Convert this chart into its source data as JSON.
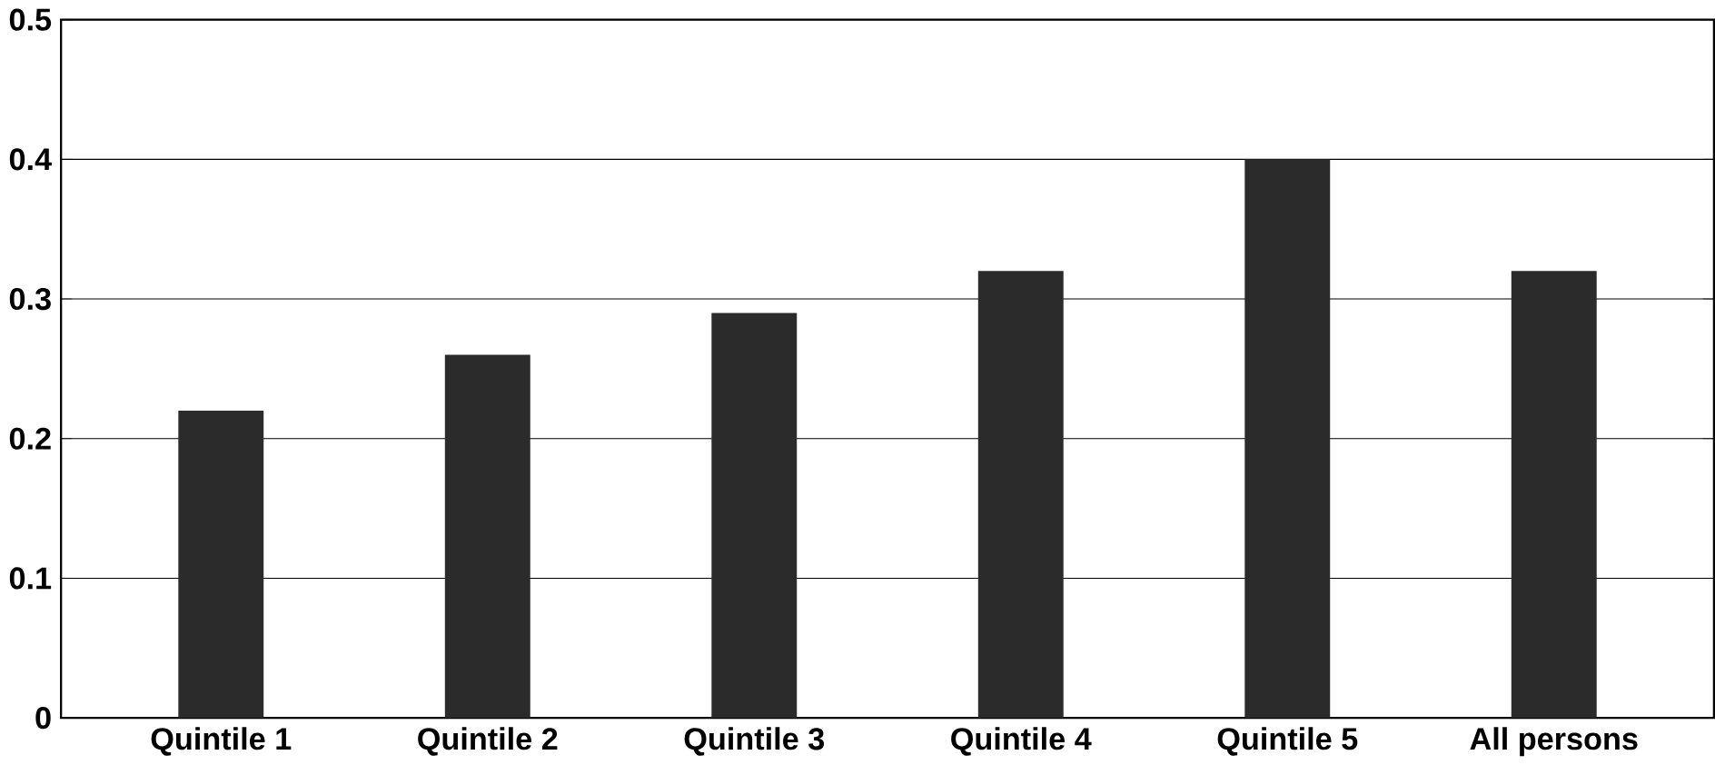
{
  "chart_data": {
    "type": "bar",
    "categories": [
      "Quintile 1",
      "Quintile 2",
      "Quintile 3",
      "Quintile 4",
      "Quintile 5",
      "All persons"
    ],
    "values": [
      0.22,
      0.26,
      0.29,
      0.32,
      0.4,
      0.32
    ],
    "color": "#2b2b2b",
    "ylim": [
      0,
      0.5
    ],
    "yticks": [
      {
        "value": 0,
        "label": "0"
      },
      0.1,
      0.2,
      0.3,
      0.4,
      0.5
    ],
    "grid": "y"
  }
}
